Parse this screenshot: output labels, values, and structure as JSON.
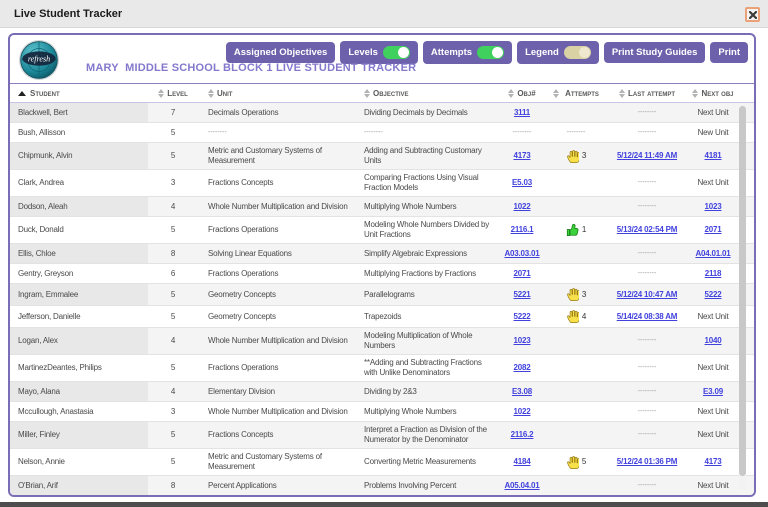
{
  "window": {
    "title": "Live Student Tracker"
  },
  "toolbar": {
    "logo_text": "refresh",
    "assigned_objectives": "Assigned Objectives",
    "levels_label": "Levels",
    "levels_state": "on",
    "attempts_label": "Attempts",
    "attempts_state": "on",
    "legend_label": "Legend",
    "legend_state": "off",
    "print_study_guides": "Print Study Guides",
    "print": "Print"
  },
  "page_title": "MARY  MIDDLE SCHOOL BLOCK 1 LIVE STUDENT TRACKER",
  "colors": {
    "button_purple": "#6e61ab",
    "panel_border_purple": "#7a6db6",
    "title_purple": "#8478cd",
    "link_blue": "#4141dd",
    "toggle_on_green": "#3fd05e",
    "toggle_legend_tan": "#d9d2a4",
    "hand_icon_yellow": "#f7e14b",
    "thumb_icon_green": "#3bd23b",
    "close_border_orange": "#eaa178"
  },
  "table": {
    "columns": [
      {
        "label": "Student",
        "sorted": "asc"
      },
      {
        "label": "Level"
      },
      {
        "label": "Unit"
      },
      {
        "label": "Objective"
      },
      {
        "label": "Obj#"
      },
      {
        "label": "Attempts"
      },
      {
        "label": "Last attempt"
      },
      {
        "label": "Next obj"
      }
    ],
    "rows": [
      {
        "student": "Blackwell, Bert",
        "level": "7",
        "unit": "Decimals Operations",
        "objective": "Dividing Decimals by Decimals",
        "obj": "3111",
        "obj_link": true,
        "att_icon": "",
        "att_count": "",
        "last": "--------",
        "last_link": false,
        "next": "Next Unit",
        "next_link": false
      },
      {
        "student": "Bush, Allisson",
        "level": "5",
        "unit": "--------",
        "objective": "--------",
        "obj": "--------",
        "obj_link": false,
        "att_icon": "dash",
        "att_count": "",
        "last": "--------",
        "last_link": false,
        "next": "New Unit",
        "next_link": false
      },
      {
        "student": "Chipmunk, Alvin",
        "level": "5",
        "unit": "Metric and Customary Systems of Measurement",
        "objective": "Adding and Subtracting Customary Units",
        "obj": "4173",
        "obj_link": true,
        "att_icon": "hand",
        "att_count": "3",
        "last": "5/12/24 11:49 AM",
        "last_link": true,
        "next": "4181",
        "next_link": true
      },
      {
        "student": "Clark, Andrea",
        "level": "3",
        "unit": "Fractions Concepts",
        "objective": "Comparing Fractions Using Visual Fraction Models",
        "obj": "E5.03",
        "obj_link": true,
        "att_icon": "",
        "att_count": "",
        "last": "--------",
        "last_link": false,
        "next": "Next Unit",
        "next_link": false
      },
      {
        "student": "Dodson, Aleah",
        "level": "4",
        "unit": "Whole Number Multiplication and Division",
        "objective": "Multiplying Whole Numbers",
        "obj": "1022",
        "obj_link": true,
        "att_icon": "",
        "att_count": "",
        "last": "--------",
        "last_link": false,
        "next": "1023",
        "next_link": true
      },
      {
        "student": "Duck, Donald",
        "level": "5",
        "unit": "Fractions Operations",
        "objective": "Modeling Whole Numbers Divided by Unit Fractions",
        "obj": "2116.1",
        "obj_link": true,
        "att_icon": "thumb",
        "att_count": "1",
        "last": "5/13/24 02:54 PM",
        "last_link": true,
        "next": "2071",
        "next_link": true
      },
      {
        "student": "Ellis, Chloe",
        "level": "8",
        "unit": "Solving Linear Equations",
        "objective": "Simplify Algebraic Expressions",
        "obj": "A03.03.01",
        "obj_link": true,
        "att_icon": "",
        "att_count": "",
        "last": "--------",
        "last_link": false,
        "next": "A04.01.01",
        "next_link": true
      },
      {
        "student": "Gentry, Greyson",
        "level": "6",
        "unit": "Fractions Operations",
        "objective": "Multiplying Fractions by Fractions",
        "obj": "2071",
        "obj_link": true,
        "att_icon": "",
        "att_count": "",
        "last": "--------",
        "last_link": false,
        "next": "2118",
        "next_link": true
      },
      {
        "student": "Ingram, Emmalee",
        "level": "5",
        "unit": "Geometry Concepts",
        "objective": "Parallelograms",
        "obj": "5221",
        "obj_link": true,
        "att_icon": "hand",
        "att_count": "3",
        "last": "5/12/24 10:47 AM",
        "last_link": true,
        "next": "5222",
        "next_link": true
      },
      {
        "student": "Jefferson, Danielle",
        "level": "5",
        "unit": "Geometry Concepts",
        "objective": "Trapezoids",
        "obj": "5222",
        "obj_link": true,
        "att_icon": "hand",
        "att_count": "4",
        "last": "5/14/24 08:38 AM",
        "last_link": true,
        "next": "Next Unit",
        "next_link": false
      },
      {
        "student": "Logan, Alex",
        "level": "4",
        "unit": "Whole Number Multiplication and Division",
        "objective": "Modeling Multiplication of Whole Numbers",
        "obj": "1023",
        "obj_link": true,
        "att_icon": "",
        "att_count": "",
        "last": "--------",
        "last_link": false,
        "next": "1040",
        "next_link": true
      },
      {
        "student": "MartinezDeantes, Philips",
        "level": "5",
        "unit": "Fractions Operations",
        "objective": "**Adding and Subtracting Fractions with Unlike Denominators",
        "obj": "2082",
        "obj_link": true,
        "att_icon": "",
        "att_count": "",
        "last": "--------",
        "last_link": false,
        "next": "Next Unit",
        "next_link": false
      },
      {
        "student": "Mayo, Alana",
        "level": "4",
        "unit": "Elementary Division",
        "objective": "Dividing by 2&3",
        "obj": "E3.08",
        "obj_link": true,
        "att_icon": "",
        "att_count": "",
        "last": "--------",
        "last_link": false,
        "next": "E3.09",
        "next_link": true
      },
      {
        "student": "Mccullough, Anastasia",
        "level": "3",
        "unit": "Whole Number Multiplication and Division",
        "objective": "Multiplying Whole Numbers",
        "obj": "1022",
        "obj_link": true,
        "att_icon": "",
        "att_count": "",
        "last": "--------",
        "last_link": false,
        "next": "Next Unit",
        "next_link": false
      },
      {
        "student": "Miller, Finley",
        "level": "5",
        "unit": "Fractions Concepts",
        "objective": "Interpret a Fraction as Division of the Numerator by the Denominator",
        "obj": "2116.2",
        "obj_link": true,
        "att_icon": "",
        "att_count": "",
        "last": "--------",
        "last_link": false,
        "next": "Next Unit",
        "next_link": false
      },
      {
        "student": "Nelson, Annie",
        "level": "5",
        "unit": "Metric and Customary Systems of Measurement",
        "objective": "Converting Metric Measurements",
        "obj": "4184",
        "obj_link": true,
        "att_icon": "hand",
        "att_count": "5",
        "last": "5/12/24 01:36 PM",
        "last_link": true,
        "next": "4173",
        "next_link": true
      },
      {
        "student": "O'Brian, Arif",
        "level": "8",
        "unit": "Percent Applications",
        "objective": "Problems Involving Percent",
        "obj": "A05.04.01",
        "obj_link": true,
        "att_icon": "",
        "att_count": "",
        "last": "--------",
        "last_link": false,
        "next": "Next Unit",
        "next_link": false
      }
    ]
  }
}
